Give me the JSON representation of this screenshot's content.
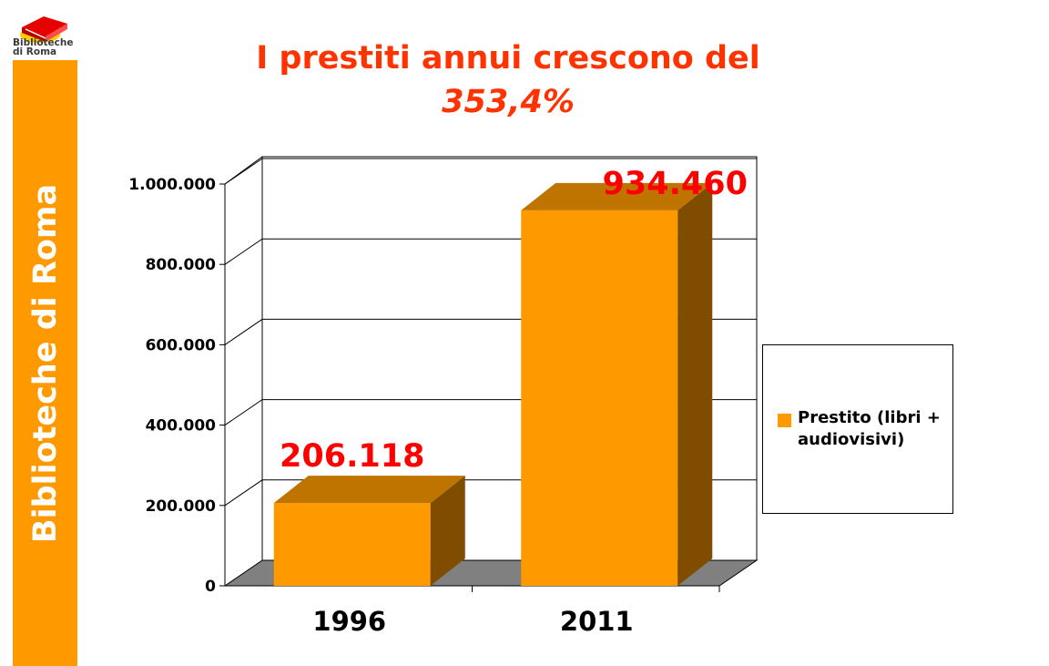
{
  "logo": {
    "text": "Biblioteche\ndi Roma",
    "icon": "book-logo-icon"
  },
  "sidebar": {
    "label": "Biblioteche di Roma",
    "color": "#ff9900"
  },
  "title": {
    "line1": "I prestiti annui crescono del",
    "line2": "353,4%",
    "color": "#ff3300"
  },
  "chart_data": {
    "type": "bar",
    "categories": [
      "1996",
      "2011"
    ],
    "series": [
      {
        "name": "Prestito (libri + audiovisivi)",
        "values": [
          206118,
          934460
        ],
        "color": "#ff9900"
      }
    ],
    "data_labels": [
      "206.118",
      "934.460"
    ],
    "yticks": [
      "0",
      "200.000",
      "400.000",
      "600.000",
      "800.000",
      "1.000.000"
    ],
    "ylim": [
      0,
      1000000
    ],
    "grid": true,
    "legend_position": "right",
    "style": "3d",
    "label_color": "#ff0000"
  }
}
